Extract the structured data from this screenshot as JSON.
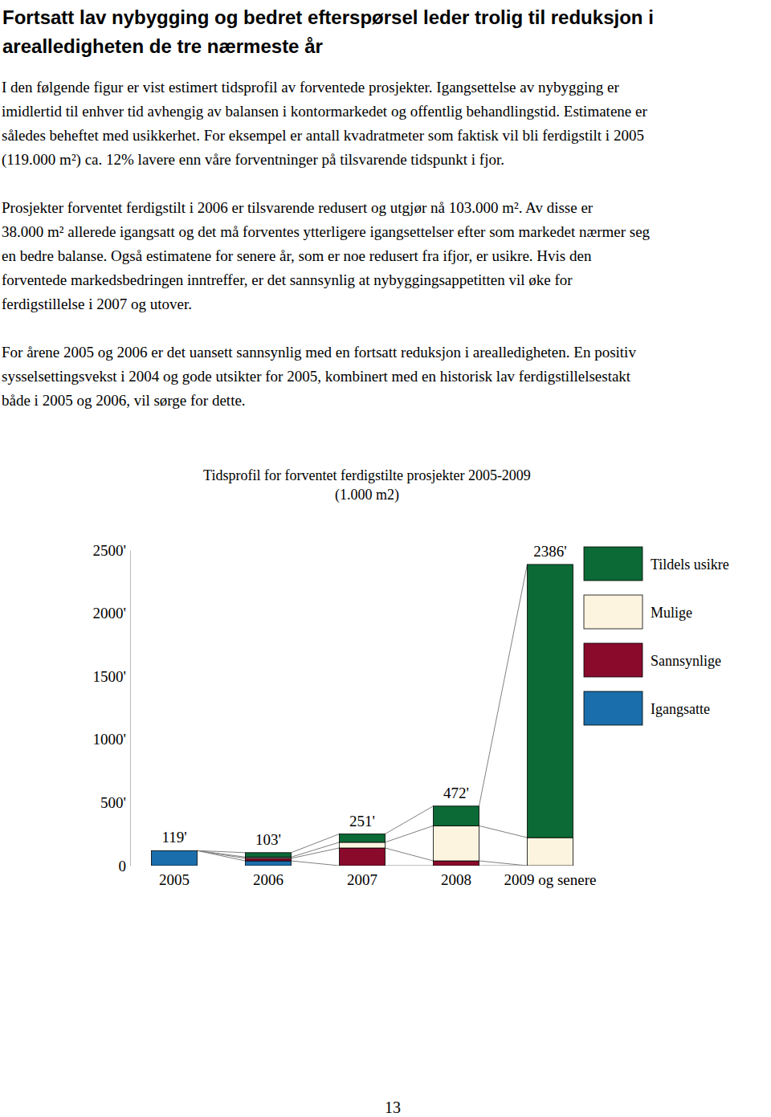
{
  "header": {
    "title_lines": [
      "Fortsatt lav nybygging og bedret efterspørsel leder trolig til reduksjon i",
      "arealledigheten de tre nærmeste år"
    ]
  },
  "paragraphs": [
    [
      "I den følgende figur er vist estimert tidsprofil av forventede prosjekter. Igangsettelse av nybygging er",
      "imidlertid til enhver tid avhengig av balansen i kontormarkedet og offentlig behandlingstid. Estimatene er",
      "således beheftet med usikkerhet. For eksempel er antall kvadratmeter som faktisk vil bli ferdigstilt i 2005",
      "(119.000 m²) ca. 12% lavere enn våre forventninger på tilsvarende tidspunkt i fjor."
    ],
    [
      "Prosjekter forventet ferdigstilt i 2006 er tilsvarende redusert og utgjør nå 103.000 m². Av disse er",
      "38.000 m² allerede igangsatt og det må forventes ytterligere igangsettelser efter som markedet nærmer seg",
      "en bedre balanse. Også estimatene for senere år, som er noe redusert fra ifjor, er usikre. Hvis den",
      "forventede markedsbedringen inntreffer, er det sannsynlig at nybyggingsappetitten vil øke for",
      "ferdigstillelse i 2007 og utover."
    ],
    [
      "For årene 2005 og 2006 er det uansett sannsynlig med en fortsatt reduksjon i arealledigheten. En positiv",
      "sysselsettingsvekst i 2004 og gode utsikter for 2005, kombinert med en historisk lav ferdigstillelsestakt",
      "både i 2005 og 2006, vil sørge for dette."
    ]
  ],
  "page_number": "13",
  "chart_data": {
    "type": "bar",
    "stacked": true,
    "title": "Tidsprofil for forventet ferdigstilte prosjekter 2005-2009",
    "subtitle": "(1.000 m2)",
    "categories": [
      "2005",
      "2006",
      "2007",
      "2008",
      "2009 og senere"
    ],
    "series": [
      {
        "name": "Igangsatte",
        "color": "#1a6eab",
        "values": [
          119,
          38,
          0,
          0,
          0
        ]
      },
      {
        "name": "Sannsynlige",
        "color": "#8a0a2c",
        "values": [
          0,
          20,
          140,
          38,
          0
        ]
      },
      {
        "name": "Mulige",
        "color": "#fdf4e0",
        "values": [
          0,
          10,
          45,
          278,
          222
        ]
      },
      {
        "name": "Tildels usikre",
        "color": "#0b6a35",
        "values": [
          0,
          35,
          66,
          156,
          2164
        ]
      }
    ],
    "totals": [
      119,
      103,
      251,
      472,
      2386
    ],
    "total_labels": [
      "119'",
      "103'",
      "251'",
      "472'",
      "2386'"
    ],
    "ylim": [
      0,
      2500
    ],
    "yticks": [
      0,
      {
        "value": 500,
        "label": "500'"
      },
      {
        "value": 1000,
        "label": "1000'"
      },
      {
        "value": 1500,
        "label": "1500'"
      },
      {
        "value": 2000,
        "label": "2000'"
      },
      {
        "value": 2500,
        "label": "2500'"
      }
    ],
    "legend": "right"
  }
}
